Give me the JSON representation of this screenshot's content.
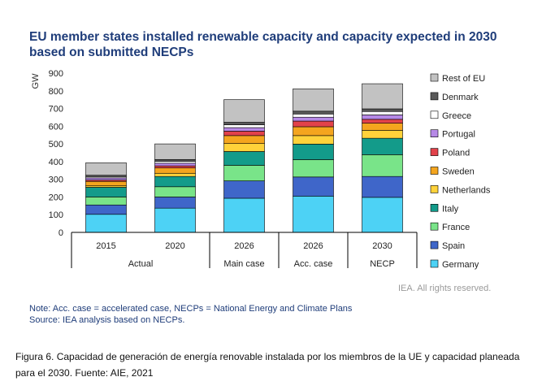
{
  "title": "EU member states installed renewable capacity and capacity expected in 2030 based on submitted NECPs",
  "watermark": "IEA. All rights reserved.",
  "note": "Note: Acc. case = accelerated case, NECPs = National Energy and Climate Plans",
  "source": "Source: IEA analysis based on NECPs.",
  "caption": "Figura 6. Capacidad de generación de energía renovable instalada por los miembros de la UE y capacidad planeada para el 2030. Fuente: AIE, 2021",
  "chart_data": {
    "type": "bar",
    "stacked": true,
    "ylabel": "GW",
    "ylim": [
      0,
      900
    ],
    "yticks": [
      0,
      100,
      200,
      300,
      400,
      500,
      600,
      700,
      800,
      900
    ],
    "categories": [
      "2015",
      "2020",
      "2026",
      "2026",
      "2030"
    ],
    "groups": [
      {
        "label": "Actual",
        "span": 2
      },
      {
        "label": "Main case",
        "span": 1
      },
      {
        "label": "Acc. case",
        "span": 1
      },
      {
        "label": "NECP",
        "span": 1
      }
    ],
    "series": [
      {
        "name": "Germany",
        "color": "#4dd2f5",
        "values": [
          102,
          137,
          193,
          205,
          198
        ]
      },
      {
        "name": "Spain",
        "color": "#3f66c9",
        "values": [
          53,
          63,
          98,
          108,
          118
        ]
      },
      {
        "name": "France",
        "color": "#79e489",
        "values": [
          45,
          58,
          88,
          98,
          123
        ]
      },
      {
        "name": "Italy",
        "color": "#139b8a",
        "values": [
          55,
          58,
          78,
          88,
          93
        ]
      },
      {
        "name": "Netherlands",
        "color": "#ffd23a",
        "values": [
          8,
          18,
          45,
          48,
          45
        ]
      },
      {
        "name": "Sweden",
        "color": "#f4a51e",
        "values": [
          25,
          30,
          45,
          50,
          40
        ]
      },
      {
        "name": "Poland",
        "color": "#e2424a",
        "values": [
          8,
          12,
          25,
          32,
          22
        ]
      },
      {
        "name": "Portugal",
        "color": "#b689e6",
        "values": [
          12,
          15,
          20,
          22,
          25
        ]
      },
      {
        "name": "Greece",
        "color": "#ffffff",
        "values": [
          7,
          10,
          16,
          18,
          19
        ]
      },
      {
        "name": "Denmark",
        "color": "#595959",
        "values": [
          8,
          11,
          14,
          16,
          15
        ]
      },
      {
        "name": "Rest of EU",
        "color": "#c2c2c2",
        "values": [
          70,
          88,
          128,
          126,
          142
        ]
      }
    ]
  }
}
